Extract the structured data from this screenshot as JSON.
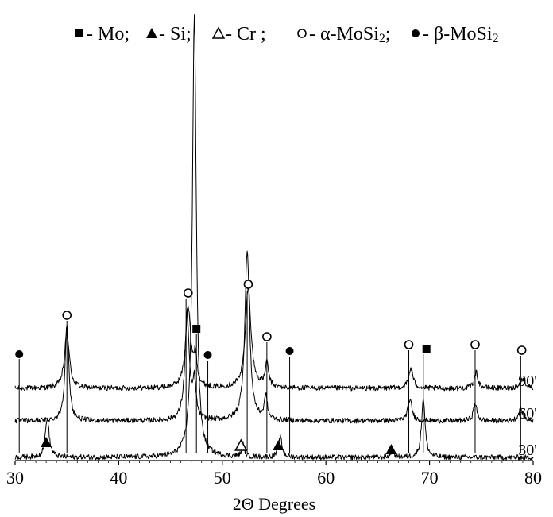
{
  "chart_data": {
    "type": "line",
    "title": "",
    "xlabel": "2Θ Degrees",
    "ylabel": "",
    "xlim": [
      30,
      80
    ],
    "xticks": [
      30,
      40,
      50,
      60,
      70,
      80
    ],
    "xtick_labels": [
      "30",
      "40",
      "50",
      "60",
      "70",
      "80"
    ],
    "grid": false,
    "legend_placement": "top",
    "legend": [
      {
        "symbol": "filled-square",
        "text": "- Mo;"
      },
      {
        "symbol": "filled-triangle",
        "text": "- Si;"
      },
      {
        "symbol": "open-triangle",
        "text": "- Cr ;"
      },
      {
        "symbol": "open-circle",
        "text": "- α-MoSi₂;"
      },
      {
        "symbol": "filled-circle",
        "text": "- β-MoSi₂"
      }
    ],
    "series": [
      {
        "name": "90'",
        "baseline": 0.87,
        "peaks": [
          {
            "x": 35.0,
            "h": 0.7,
            "w": 0.28
          },
          {
            "x": 46.7,
            "h": 1.0,
            "w": 0.3
          },
          {
            "x": 47.4,
            "h": 0.35,
            "w": 0.2
          },
          {
            "x": 52.5,
            "h": 1.27,
            "w": 0.32
          },
          {
            "x": 54.3,
            "h": 0.3,
            "w": 0.2
          },
          {
            "x": 68.2,
            "h": 0.25,
            "w": 0.25
          },
          {
            "x": 74.5,
            "h": 0.2,
            "w": 0.22
          },
          {
            "x": 79.0,
            "h": 0.12,
            "w": 0.3
          }
        ]
      },
      {
        "name": "60'",
        "baseline": 0.46,
        "peaks": [
          {
            "x": 35.0,
            "h": 1.2,
            "w": 0.22
          },
          {
            "x": 46.6,
            "h": 1.35,
            "w": 0.25
          },
          {
            "x": 47.3,
            "h": 0.45,
            "w": 0.18
          },
          {
            "x": 52.4,
            "h": 2.15,
            "w": 0.27
          },
          {
            "x": 54.2,
            "h": 0.3,
            "w": 0.17
          },
          {
            "x": 68.1,
            "h": 0.27,
            "w": 0.24
          },
          {
            "x": 74.4,
            "h": 0.22,
            "w": 0.2
          },
          {
            "x": 78.8,
            "h": 0.15,
            "w": 0.25
          }
        ]
      },
      {
        "name": "30'",
        "baseline": 0.0,
        "peaks": [
          {
            "x": 33.1,
            "h": 0.5,
            "w": 0.22
          },
          {
            "x": 47.3,
            "h": 5.6,
            "w": 0.22
          },
          {
            "x": 52.0,
            "h": 0.18,
            "w": 0.14
          },
          {
            "x": 55.6,
            "h": 0.25,
            "w": 0.2
          },
          {
            "x": 66.4,
            "h": 0.1,
            "w": 0.15
          },
          {
            "x": 69.4,
            "h": 0.75,
            "w": 0.2
          }
        ]
      }
    ],
    "reference_lines": [
      {
        "x": 30.4,
        "y_top": 1.24
      },
      {
        "x": 35.0,
        "y_top": 1.72
      },
      {
        "x": 46.5,
        "y_top": 2.0
      },
      {
        "x": 47.5,
        "y_top": 1.55
      },
      {
        "x": 48.6,
        "y_top": 1.22
      },
      {
        "x": 52.4,
        "y_top": 2.1
      },
      {
        "x": 54.3,
        "y_top": 1.45
      },
      {
        "x": 56.5,
        "y_top": 1.27
      },
      {
        "x": 68.0,
        "y_top": 1.35
      },
      {
        "x": 69.4,
        "y_top": 1.3
      },
      {
        "x": 74.4,
        "y_top": 1.35
      },
      {
        "x": 78.8,
        "y_top": 1.28
      }
    ],
    "markers": [
      {
        "x": 30.4,
        "y": 1.3,
        "symbol": "filled-circle"
      },
      {
        "x": 35.0,
        "y": 1.79,
        "symbol": "open-circle"
      },
      {
        "x": 46.7,
        "y": 2.07,
        "symbol": "open-circle"
      },
      {
        "x": 47.5,
        "y": 1.62,
        "symbol": "filled-square"
      },
      {
        "x": 48.6,
        "y": 1.29,
        "symbol": "filled-circle"
      },
      {
        "x": 52.5,
        "y": 2.18,
        "symbol": "open-circle"
      },
      {
        "x": 54.3,
        "y": 1.52,
        "symbol": "open-circle"
      },
      {
        "x": 56.5,
        "y": 1.34,
        "symbol": "filled-circle"
      },
      {
        "x": 68.0,
        "y": 1.42,
        "symbol": "open-circle"
      },
      {
        "x": 69.7,
        "y": 1.37,
        "symbol": "filled-square"
      },
      {
        "x": 74.4,
        "y": 1.42,
        "symbol": "open-circle"
      },
      {
        "x": 78.9,
        "y": 1.35,
        "symbol": "open-circle"
      },
      {
        "x": 33.0,
        "y": 0.19,
        "symbol": "filled-triangle"
      },
      {
        "x": 51.8,
        "y": 0.15,
        "symbol": "open-triangle"
      },
      {
        "x": 55.4,
        "y": 0.15,
        "symbol": "filled-triangle"
      },
      {
        "x": 66.3,
        "y": 0.1,
        "symbol": "filled-triangle"
      }
    ]
  }
}
